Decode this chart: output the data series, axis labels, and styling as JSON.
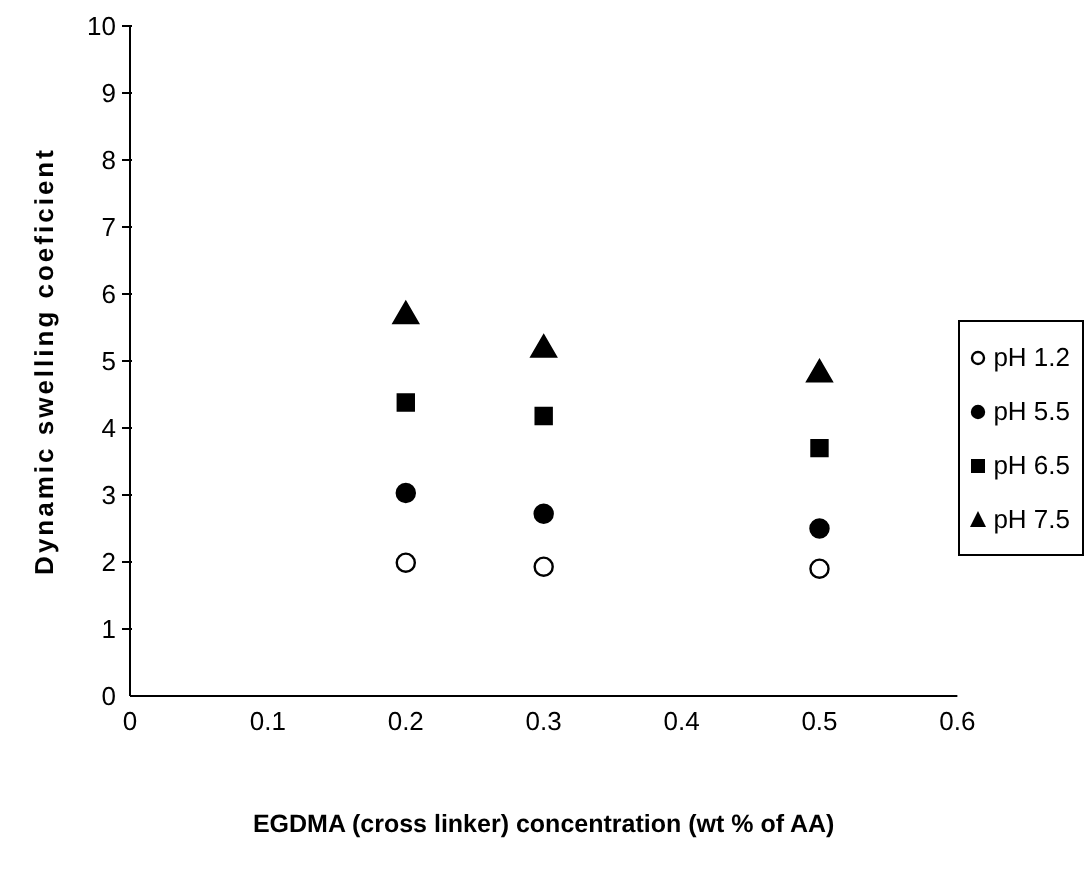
{
  "chart_data": {
    "type": "scatter",
    "xlabel": "EGDMA (cross linker) concentration (wt % of AA)",
    "ylabel": "Dynamic swelling coeficient",
    "x": [
      0.2,
      0.3,
      0.5
    ],
    "series": [
      {
        "name": "pH 1.2",
        "color": "#ffffff",
        "marker": "circle",
        "values": [
          1.99,
          1.93,
          1.9
        ]
      },
      {
        "name": "pH 5.5",
        "color": "#000000",
        "marker": "circle",
        "values": [
          3.03,
          2.72,
          2.5
        ]
      },
      {
        "name": "pH 6.5",
        "color": "#000000",
        "marker": "square",
        "values": [
          4.38,
          4.18,
          3.7
        ]
      },
      {
        "name": "pH 7.5",
        "color": "#000000",
        "marker": "triangle",
        "values": [
          5.67,
          5.17,
          4.8
        ]
      }
    ],
    "xlim": [
      0,
      0.6
    ],
    "xticks": [
      0,
      0.1,
      0.2,
      0.3,
      0.4,
      0.5,
      0.6
    ],
    "ylim": [
      0,
      10
    ],
    "yticks": [
      0,
      1,
      2,
      3,
      4,
      5,
      6,
      7,
      8,
      9,
      10
    ],
    "grid": false,
    "legend": "right"
  }
}
